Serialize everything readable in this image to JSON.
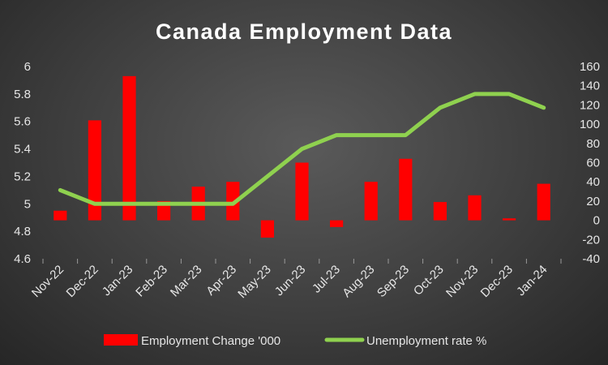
{
  "chart_data": {
    "type": "bar+line",
    "title": "Canada Employment Data",
    "categories": [
      "Nov-22",
      "Dec-22",
      "Jan-23",
      "Feb-23",
      "Mar-23",
      "Apr-23",
      "May-23",
      "Jun-23",
      "Jul-23",
      "Aug-23",
      "Sep-23",
      "Oct-23",
      "Nov-23",
      "Dec-23",
      "Jan-24"
    ],
    "series": [
      {
        "name": "Employment Change '000",
        "type": "bar",
        "axis": "right",
        "color": "#ff0000",
        "values": [
          10,
          104,
          150,
          20,
          35,
          40,
          -18,
          60,
          -7,
          40,
          64,
          19,
          26,
          2,
          38
        ]
      },
      {
        "name": "Unemployment rate %",
        "type": "line",
        "axis": "left",
        "color": "#8fd14f",
        "values": [
          5.1,
          5.0,
          5.0,
          5.0,
          5.0,
          5.0,
          5.2,
          5.4,
          5.5,
          5.5,
          5.5,
          5.7,
          5.8,
          5.8,
          5.7
        ]
      }
    ],
    "y_left": {
      "ylim": [
        4.6,
        6
      ],
      "ticks": [
        "4.6",
        "4.8",
        "5",
        "5.2",
        "5.4",
        "5.6",
        "5.8",
        "6"
      ]
    },
    "y_right": {
      "ylim": [
        -40,
        160
      ],
      "ticks": [
        "-40",
        "-20",
        "0",
        "20",
        "40",
        "60",
        "80",
        "100",
        "120",
        "140",
        "160"
      ]
    },
    "grid": false,
    "legend_position": "bottom"
  }
}
